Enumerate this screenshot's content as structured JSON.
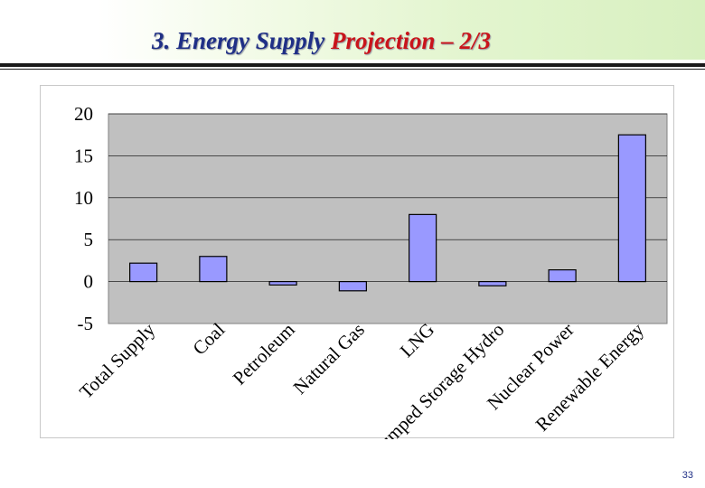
{
  "slide": {
    "title_part_1": "3. Energy Supply ",
    "title_part_2": "Projection – 2/3",
    "page_number": "33"
  },
  "colors": {
    "title_primary": "#1f2f86",
    "title_accent": "#c9141b",
    "plot_background": "#c0c0c0",
    "bar_fill": "#9999ff",
    "bar_stroke": "#000000",
    "gridline": "#000000"
  },
  "chart_data": {
    "type": "bar",
    "title": "",
    "xlabel": "",
    "ylabel": "",
    "categories": [
      "Total Supply",
      "Coal",
      "Petroleum",
      "Natural Gas",
      "LNG",
      "Pumped Storage Hydro",
      "Nuclear Power",
      "Renewable Energy"
    ],
    "values": [
      2.2,
      3.0,
      -0.4,
      -1.1,
      8.0,
      -0.5,
      1.4,
      17.5
    ],
    "ylim": [
      -5,
      20
    ],
    "yticks": [
      -5,
      0,
      5,
      10,
      15,
      20
    ],
    "grid": true,
    "legend": "none"
  }
}
